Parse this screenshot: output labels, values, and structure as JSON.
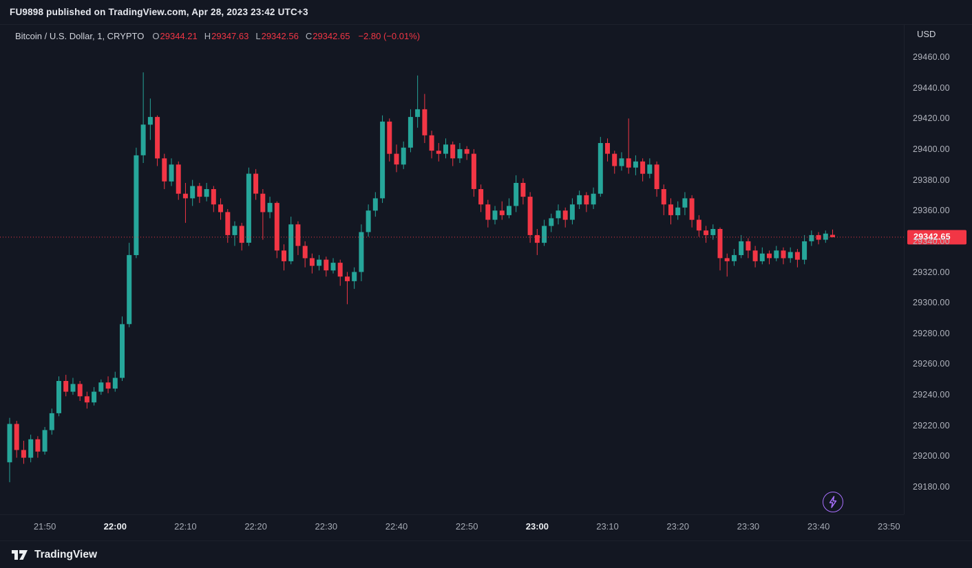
{
  "topbar": {
    "published_text": "FU9898 published on TradingView.com, Apr 28, 2023 23:42 UTC+3"
  },
  "legend": {
    "symbol": "Bitcoin / U.S. Dollar, 1, CRYPTO",
    "ohlc": [
      {
        "label": "O",
        "value": "29344.21"
      },
      {
        "label": "H",
        "value": "29347.63"
      },
      {
        "label": "L",
        "value": "29342.56"
      },
      {
        "label": "C",
        "value": "29342.65"
      }
    ],
    "change": "−2.80 (−0.01%)"
  },
  "price_axis": {
    "currency": "USD",
    "ticks": [
      "29460.00",
      "29440.00",
      "29420.00",
      "29400.00",
      "29380.00",
      "29360.00",
      "29340.00",
      "29320.00",
      "29300.00",
      "29280.00",
      "29260.00",
      "29240.00",
      "29220.00",
      "29200.00",
      "29180.00"
    ],
    "last_price_label": "29342.65"
  },
  "time_axis": {
    "labels": [
      {
        "t": "21:50",
        "strong": false
      },
      {
        "t": "22:00",
        "strong": true
      },
      {
        "t": "22:10",
        "strong": false
      },
      {
        "t": "22:20",
        "strong": false
      },
      {
        "t": "22:30",
        "strong": false
      },
      {
        "t": "22:40",
        "strong": false
      },
      {
        "t": "22:50",
        "strong": false
      },
      {
        "t": "23:00",
        "strong": true
      },
      {
        "t": "23:10",
        "strong": false
      },
      {
        "t": "23:20",
        "strong": false
      },
      {
        "t": "23:30",
        "strong": false
      },
      {
        "t": "23:40",
        "strong": false
      },
      {
        "t": "23:50",
        "strong": false
      }
    ]
  },
  "footer": {
    "brand": "TradingView"
  },
  "colors": {
    "background": "#131722",
    "up": "#26a69a",
    "down": "#f23645",
    "axis_text": "#b2b5be",
    "badge": "#f23645",
    "purple": "#a970ff"
  },
  "chart_data": {
    "type": "candlestick",
    "title": "Bitcoin / U.S. Dollar",
    "interval_minutes": 1,
    "exchange": "CRYPTO",
    "currency": "USD",
    "y_axis": {
      "min": 29180,
      "max": 29460,
      "tick_step": 20
    },
    "x_axis": {
      "start_time": "21:45",
      "end_label": "23:50"
    },
    "last_close": 29342.65,
    "candle_format": [
      "time",
      "open",
      "high",
      "low",
      "close"
    ],
    "candles": [
      [
        "21:45",
        29196,
        29225,
        29183,
        29221
      ],
      [
        "21:46",
        29221,
        29223,
        29199,
        29204
      ],
      [
        "21:47",
        29204,
        29210,
        29195,
        29199
      ],
      [
        "21:48",
        29199,
        29214,
        29196,
        29211
      ],
      [
        "21:49",
        29211,
        29213,
        29199,
        29203
      ],
      [
        "21:50",
        29203,
        29219,
        29201,
        29217
      ],
      [
        "21:51",
        29217,
        29231,
        29214,
        29228
      ],
      [
        "21:52",
        29228,
        29252,
        29226,
        29249
      ],
      [
        "21:53",
        29249,
        29253,
        29239,
        29242
      ],
      [
        "21:54",
        29242,
        29251,
        29240,
        29247
      ],
      [
        "21:55",
        29247,
        29249,
        29236,
        29239
      ],
      [
        "21:56",
        29239,
        29242,
        29231,
        29235
      ],
      [
        "21:57",
        29235,
        29245,
        29233,
        29242
      ],
      [
        "21:58",
        29242,
        29250,
        29240,
        29248
      ],
      [
        "21:59",
        29248,
        29252,
        29241,
        29244
      ],
      [
        "22:00",
        29244,
        29255,
        29242,
        29251
      ],
      [
        "22:01",
        29251,
        29291,
        29249,
        29286
      ],
      [
        "22:02",
        29286,
        29339,
        29284,
        29331
      ],
      [
        "22:03",
        29331,
        29401,
        29329,
        29396
      ],
      [
        "22:04",
        29396,
        29450,
        29391,
        29416
      ],
      [
        "22:05",
        29416,
        29433,
        29406,
        29421
      ],
      [
        "22:06",
        29421,
        29422,
        29389,
        29394
      ],
      [
        "22:07",
        29394,
        29397,
        29374,
        29379
      ],
      [
        "22:08",
        29379,
        29394,
        29376,
        29390
      ],
      [
        "22:09",
        29390,
        29392,
        29367,
        29371
      ],
      [
        "22:10",
        29371,
        29378,
        29352,
        29368
      ],
      [
        "22:11",
        29368,
        29380,
        29363,
        29376
      ],
      [
        "22:12",
        29376,
        29378,
        29365,
        29369
      ],
      [
        "22:13",
        29369,
        29378,
        29366,
        29374
      ],
      [
        "22:14",
        29374,
        29376,
        29359,
        29364
      ],
      [
        "22:15",
        29364,
        29368,
        29354,
        29359
      ],
      [
        "22:16",
        29359,
        29361,
        29339,
        29344
      ],
      [
        "22:17",
        29344,
        29353,
        29337,
        29350
      ],
      [
        "22:18",
        29350,
        29352,
        29334,
        29339
      ],
      [
        "22:19",
        29339,
        29388,
        29337,
        29384
      ],
      [
        "22:20",
        29384,
        29387,
        29367,
        29371
      ],
      [
        "22:21",
        29371,
        29374,
        29341,
        29359
      ],
      [
        "22:22",
        29359,
        29369,
        29355,
        29365
      ],
      [
        "22:23",
        29365,
        29366,
        29329,
        29334
      ],
      [
        "22:24",
        29334,
        29338,
        29321,
        29327
      ],
      [
        "22:25",
        29327,
        29356,
        29325,
        29351
      ],
      [
        "22:26",
        29351,
        29353,
        29331,
        29337
      ],
      [
        "22:27",
        29337,
        29340,
        29323,
        29329
      ],
      [
        "22:28",
        29329,
        29332,
        29319,
        29324
      ],
      [
        "22:29",
        29324,
        29331,
        29321,
        29328
      ],
      [
        "22:30",
        29328,
        29330,
        29317,
        29321
      ],
      [
        "22:31",
        29321,
        29329,
        29319,
        29326
      ],
      [
        "22:32",
        29326,
        29328,
        29311,
        29317
      ],
      [
        "22:33",
        29317,
        29320,
        29299,
        29314
      ],
      [
        "22:34",
        29314,
        29323,
        29309,
        29320
      ],
      [
        "22:35",
        29320,
        29351,
        29314,
        29346
      ],
      [
        "22:36",
        29346,
        29364,
        29343,
        29360
      ],
      [
        "22:37",
        29360,
        29372,
        29356,
        29368
      ],
      [
        "22:38",
        29368,
        29422,
        29365,
        29418
      ],
      [
        "22:39",
        29418,
        29420,
        29392,
        29397
      ],
      [
        "22:40",
        29397,
        29403,
        29385,
        29390
      ],
      [
        "22:41",
        29390,
        29405,
        29387,
        29401
      ],
      [
        "22:42",
        29401,
        29426,
        29398,
        29421
      ],
      [
        "22:43",
        29421,
        29448,
        29414,
        29426
      ],
      [
        "22:44",
        29426,
        29436,
        29404,
        29409
      ],
      [
        "22:45",
        29409,
        29412,
        29394,
        29399
      ],
      [
        "22:46",
        29399,
        29404,
        29392,
        29397
      ],
      [
        "22:47",
        29397,
        29407,
        29394,
        29403
      ],
      [
        "22:48",
        29403,
        29405,
        29389,
        29394
      ],
      [
        "22:49",
        29394,
        29404,
        29391,
        29400
      ],
      [
        "22:50",
        29400,
        29402,
        29393,
        29397
      ],
      [
        "22:51",
        29397,
        29400,
        29369,
        29374
      ],
      [
        "22:52",
        29374,
        29377,
        29359,
        29364
      ],
      [
        "22:53",
        29364,
        29367,
        29349,
        29354
      ],
      [
        "22:54",
        29354,
        29363,
        29351,
        29360
      ],
      [
        "22:55",
        29360,
        29366,
        29354,
        29357
      ],
      [
        "22:56",
        29357,
        29368,
        29355,
        29363
      ],
      [
        "22:57",
        29363,
        29383,
        29359,
        29378
      ],
      [
        "22:58",
        29378,
        29381,
        29364,
        29369
      ],
      [
        "22:59",
        29369,
        29372,
        29339,
        29344
      ],
      [
        "23:00",
        29344,
        29348,
        29331,
        29339
      ],
      [
        "23:01",
        29339,
        29354,
        29337,
        29350
      ],
      [
        "23:02",
        29350,
        29358,
        29346,
        29355
      ],
      [
        "23:03",
        29355,
        29364,
        29351,
        29360
      ],
      [
        "23:04",
        29360,
        29362,
        29349,
        29354
      ],
      [
        "23:05",
        29354,
        29368,
        29351,
        29364
      ],
      [
        "23:06",
        29364,
        29373,
        29361,
        29370
      ],
      [
        "23:07",
        29370,
        29372,
        29359,
        29364
      ],
      [
        "23:08",
        29364,
        29375,
        29361,
        29371
      ],
      [
        "23:09",
        29371,
        29408,
        29369,
        29404
      ],
      [
        "23:10",
        29404,
        29407,
        29392,
        29397
      ],
      [
        "23:11",
        29397,
        29399,
        29384,
        29389
      ],
      [
        "23:12",
        29389,
        29398,
        29386,
        29394
      ],
      [
        "23:13",
        29394,
        29420,
        29384,
        29388
      ],
      [
        "23:14",
        29388,
        29396,
        29383,
        29392
      ],
      [
        "23:15",
        29392,
        29394,
        29379,
        29384
      ],
      [
        "23:16",
        29384,
        29394,
        29381,
        29390
      ],
      [
        "23:17",
        29390,
        29392,
        29369,
        29374
      ],
      [
        "23:18",
        29374,
        29377,
        29357,
        29364
      ],
      [
        "23:19",
        29364,
        29368,
        29351,
        29357
      ],
      [
        "23:20",
        29357,
        29366,
        29354,
        29362
      ],
      [
        "23:21",
        29362,
        29372,
        29357,
        29368
      ],
      [
        "23:22",
        29368,
        29370,
        29349,
        29354
      ],
      [
        "23:23",
        29354,
        29357,
        29343,
        29347
      ],
      [
        "23:24",
        29347,
        29350,
        29339,
        29344
      ],
      [
        "23:25",
        29344,
        29351,
        29341,
        29348
      ],
      [
        "23:26",
        29348,
        29349,
        29321,
        29329
      ],
      [
        "23:27",
        29329,
        29332,
        29317,
        29327
      ],
      [
        "23:28",
        29327,
        29335,
        29324,
        29331
      ],
      [
        "23:29",
        29331,
        29344,
        29329,
        29340
      ],
      [
        "23:30",
        29340,
        29342,
        29329,
        29334
      ],
      [
        "23:31",
        29334,
        29337,
        29323,
        29327
      ],
      [
        "23:32",
        29327,
        29336,
        29325,
        29332
      ],
      [
        "23:33",
        29332,
        29334,
        29325,
        29329
      ],
      [
        "23:34",
        29329,
        29337,
        29327,
        29334
      ],
      [
        "23:35",
        29334,
        29336,
        29325,
        29329
      ],
      [
        "23:36",
        29329,
        29336,
        29326,
        29333
      ],
      [
        "23:37",
        29333,
        29335,
        29323,
        29328
      ],
      [
        "23:38",
        29328,
        29344,
        29325,
        29340
      ],
      [
        "23:39",
        29340,
        29347,
        29337,
        29344
      ],
      [
        "23:40",
        29344,
        29346,
        29338,
        29341
      ],
      [
        "23:41",
        29341,
        29347,
        29339,
        29345
      ],
      [
        "23:42",
        29344.21,
        29347.63,
        29342.56,
        29342.65
      ]
    ]
  }
}
